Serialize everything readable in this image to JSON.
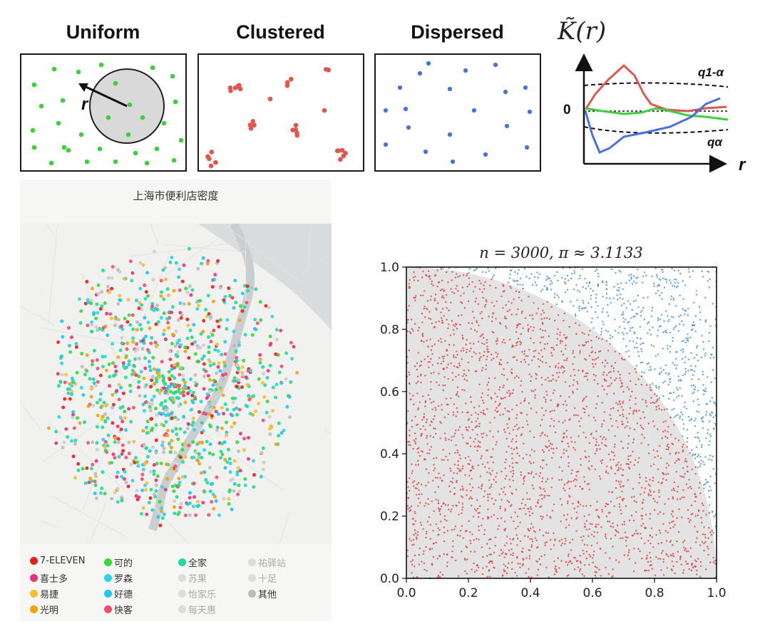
{
  "panels": {
    "uniform": {
      "title": "Uniform",
      "radius_label": "r",
      "color": "#3ecf3e"
    },
    "clustered": {
      "title": "Clustered",
      "color": "#e0564f"
    },
    "dispersed": {
      "title": "Dispersed",
      "color": "#4a6fe0"
    }
  },
  "k_function": {
    "title": "K̃(r)",
    "upper_label": "q1-α",
    "lower_label": "qα",
    "zero_label": "0",
    "x_label": "r"
  },
  "map": {
    "title": "上海市便利店密度",
    "legend": [
      {
        "label": "7-ELEVEN",
        "color": "#e8201c",
        "muted": false
      },
      {
        "label": "可的",
        "color": "#3ad63a",
        "muted": false
      },
      {
        "label": "全家",
        "color": "#22d9a0",
        "muted": false
      },
      {
        "label": "祐驿站",
        "color": "#dddddd",
        "muted": true
      },
      {
        "label": "喜士多",
        "color": "#e8317a",
        "muted": false
      },
      {
        "label": "罗森",
        "color": "#2ed4e6",
        "muted": false
      },
      {
        "label": "苏果",
        "color": "#dddddd",
        "muted": true
      },
      {
        "label": "十足",
        "color": "#dddddd",
        "muted": true
      },
      {
        "label": "易捷",
        "color": "#f2c12e",
        "muted": false
      },
      {
        "label": "好德",
        "color": "#1ec8f0",
        "muted": false
      },
      {
        "label": "怡家乐",
        "color": "#dddddd",
        "muted": true
      },
      {
        "label": "其他",
        "color": "#bbbbbb",
        "muted": false
      },
      {
        "label": "光明",
        "color": "#f2a20c",
        "muted": false
      },
      {
        "label": "快客",
        "color": "#ec4f6e",
        "muted": false
      },
      {
        "label": "每天惠",
        "color": "#dddddd",
        "muted": true
      }
    ]
  },
  "chart_data": {
    "type": "scatter",
    "title": "n = 3000, π ≈ 3.1133",
    "n": 3000,
    "pi_estimate": 3.1133,
    "xlim": [
      0.0,
      1.0
    ],
    "ylim": [
      0.0,
      1.0
    ],
    "x_ticks": [
      "0.0",
      "0.2",
      "0.4",
      "0.6",
      "0.8",
      "1.0"
    ],
    "y_ticks": [
      "0.0",
      "0.2",
      "0.4",
      "0.6",
      "0.8",
      "1.0"
    ],
    "series": [
      {
        "inside_circle": true,
        "color": "#e0443f"
      },
      {
        "inside_circle": false,
        "color": "#4a90d0"
      }
    ],
    "shaded_region": "quarter-circle x^2 + y^2 <= 1",
    "shade_color": "#e3e3e3"
  }
}
